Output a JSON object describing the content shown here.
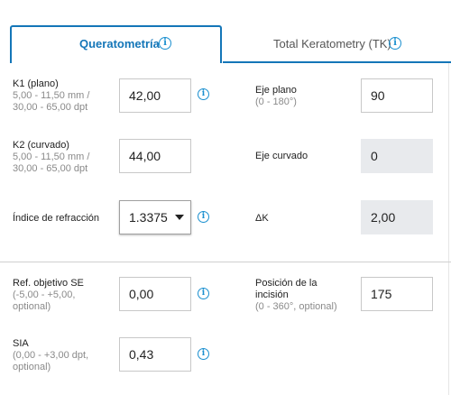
{
  "tabs": [
    {
      "label": "Queratometría",
      "active": true
    },
    {
      "label": "Total Keratometry (TK)",
      "active": false
    }
  ],
  "left": {
    "k1": {
      "label": "K1 (plano)",
      "hint1": "5,00 - 11,50 mm /",
      "hint2": "30,00 - 65,00 dpt",
      "value": "42,00"
    },
    "k2": {
      "label": "K2 (curvado)",
      "hint1": "5,00 - 11,50 mm /",
      "hint2": "30,00 - 65,00 dpt",
      "value": "44,00"
    },
    "refraction": {
      "label": "Índice de refracción",
      "value": "1.3375"
    },
    "ref_target": {
      "label": "Ref. objetivo SE",
      "hint1": "(-5,00 - +5,00,",
      "hint2": "optional)",
      "value": "0,00"
    },
    "sia": {
      "label": "SIA",
      "hint1": "(0,00 - +3,00 dpt,",
      "hint2": "optional)",
      "value": "0,43"
    }
  },
  "right": {
    "eje_plano": {
      "label": "Eje plano",
      "hint": "(0 - 180°)",
      "value": "90"
    },
    "eje_curvado": {
      "label": "Eje curvado",
      "value": "0"
    },
    "delta_k": {
      "label": "ΔK",
      "value": "2,00"
    },
    "incision": {
      "label1": "Posición de la",
      "label2": "incisión",
      "hint": "(0 - 360°, optional)",
      "value": "175"
    }
  },
  "icons": {
    "info": "info-icon",
    "dropdown": "chevron-down-icon"
  },
  "colors": {
    "accent": "#1476b8",
    "info": "#1a8fcf",
    "readonly_bg": "#e8eaed"
  }
}
